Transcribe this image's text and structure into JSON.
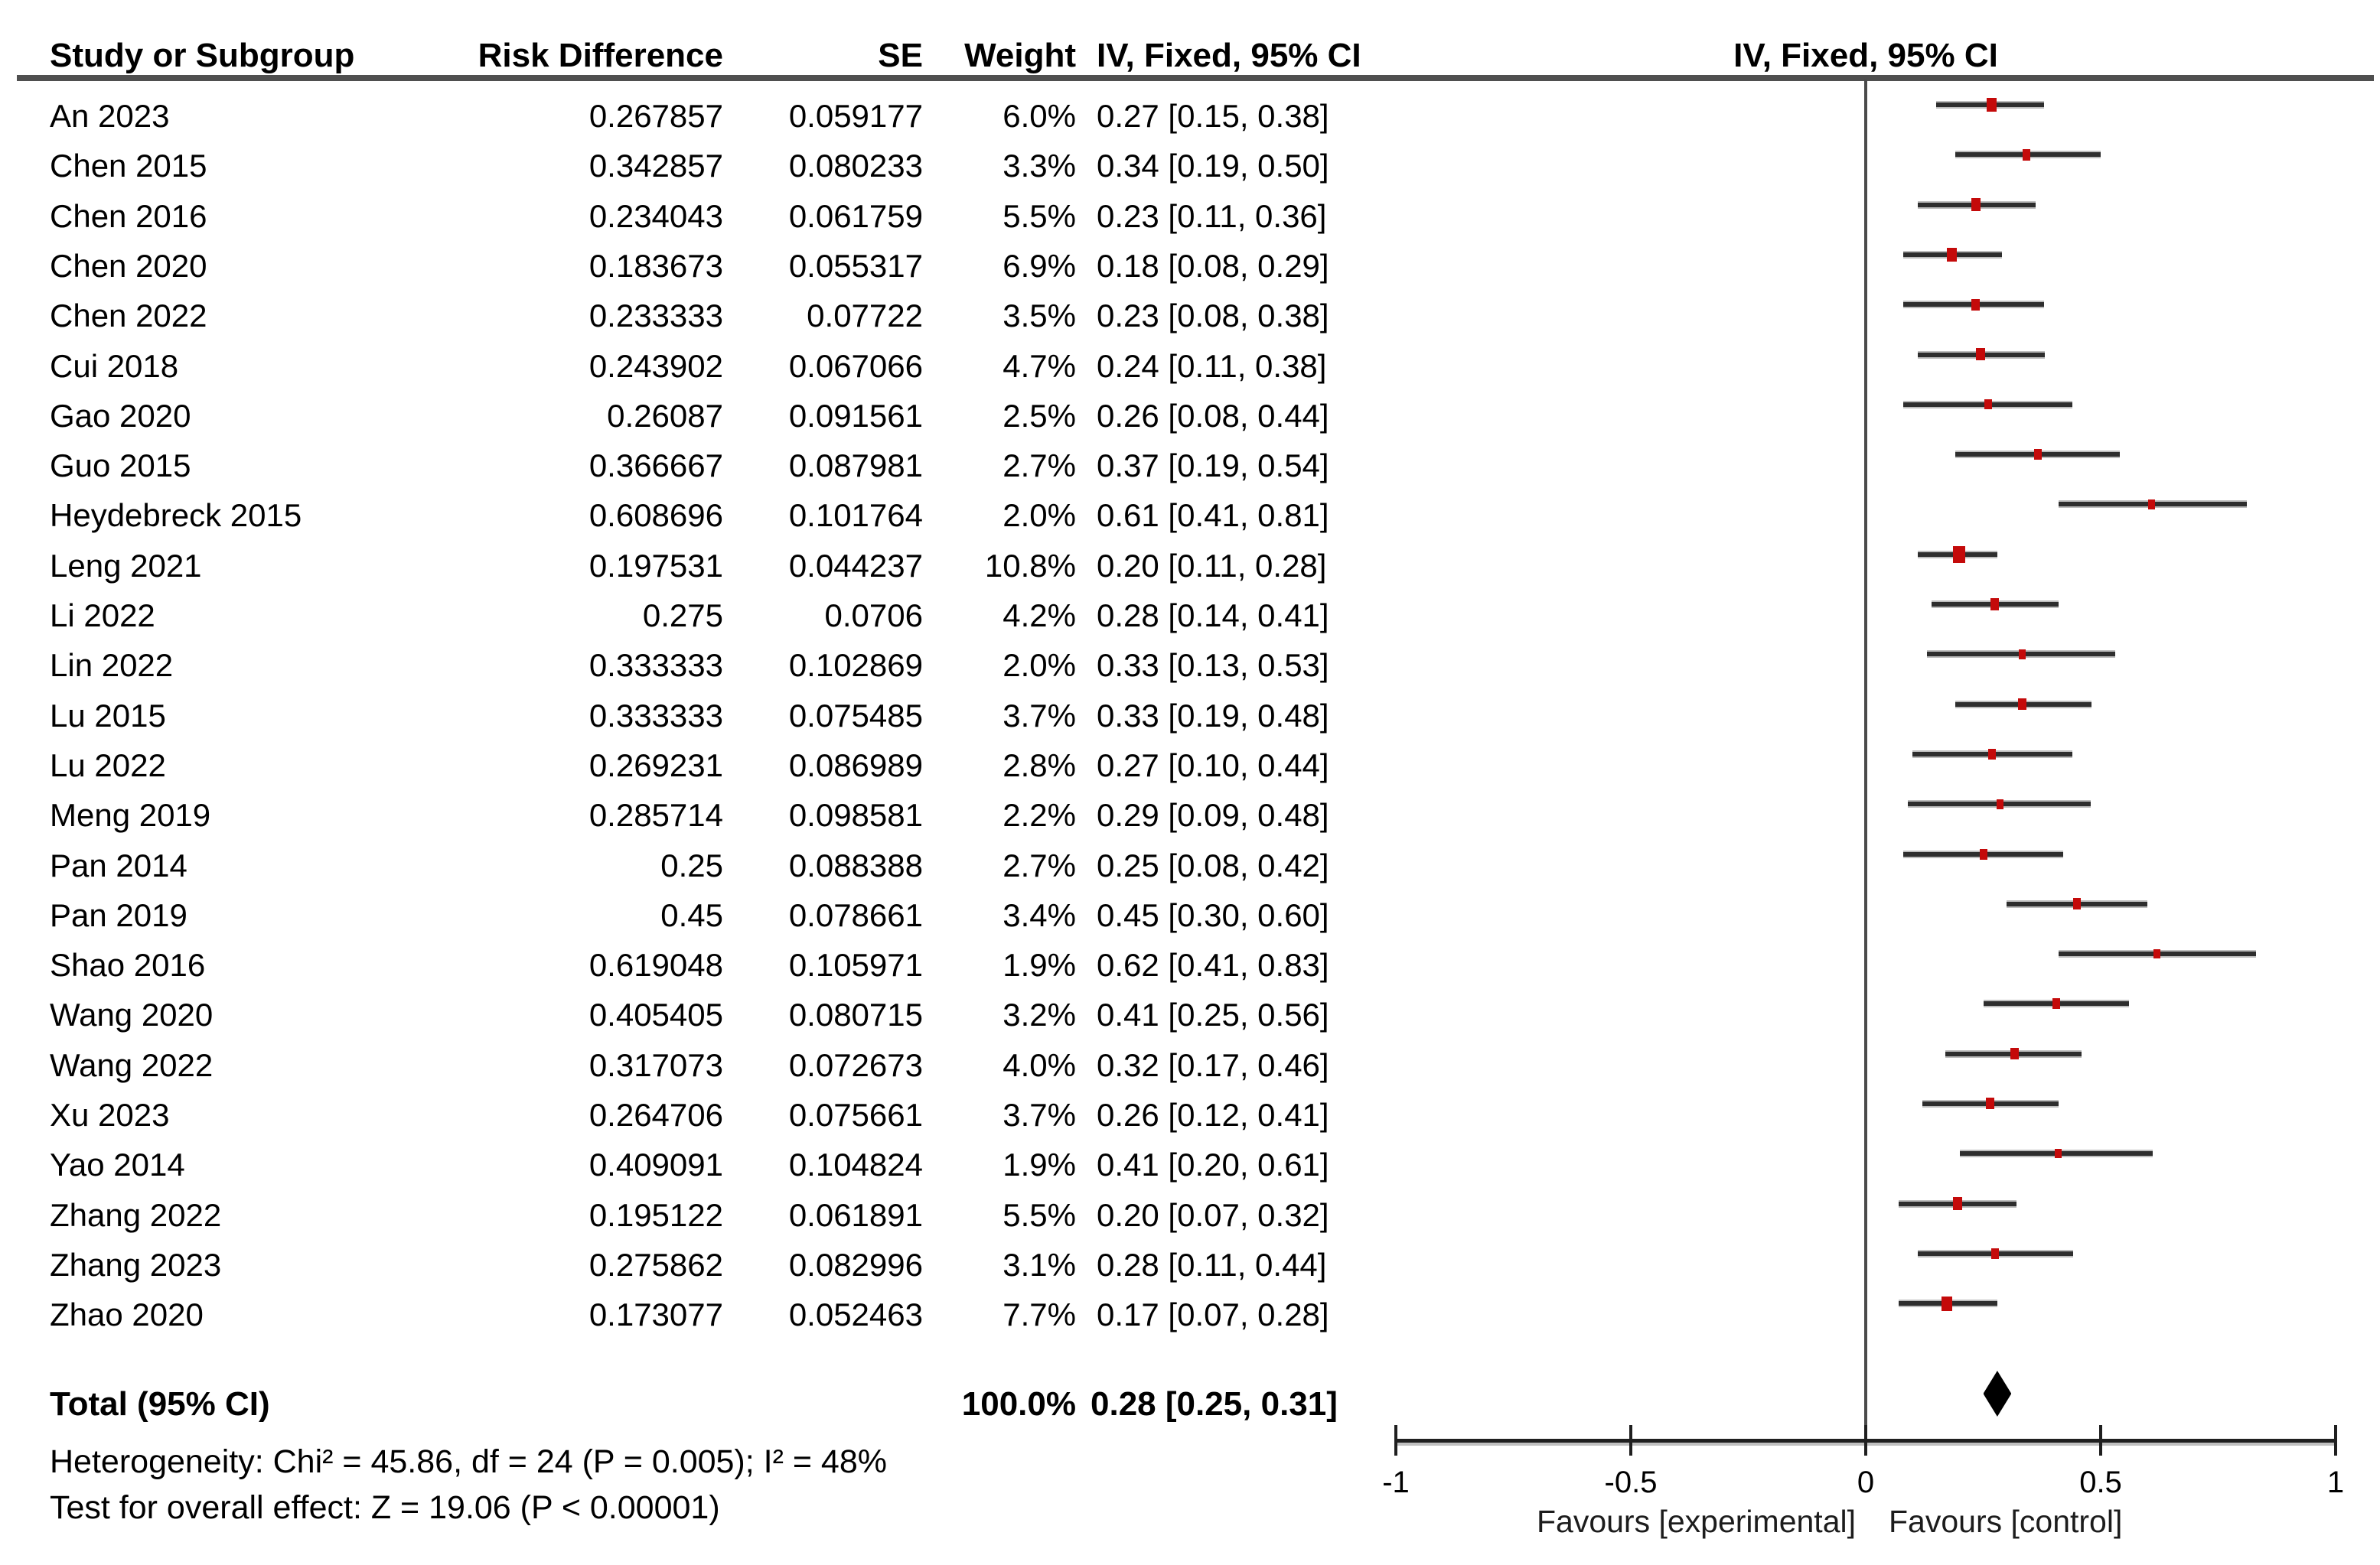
{
  "table": {
    "headers": {
      "study": "Study or Subgroup",
      "risk_difference": "Risk Difference",
      "se": "SE",
      "weight": "Weight",
      "ci_text": "IV, Fixed, 95% CI",
      "ci_plot": "IV, Fixed, 95% CI"
    }
  },
  "chart_data": {
    "type": "forest",
    "effect_measure": "Risk Difference",
    "model": "IV, Fixed",
    "xlim": [
      -1,
      1
    ],
    "x_ticks": [
      -1,
      -0.5,
      0,
      0.5,
      1
    ],
    "x_tick_labels": [
      "-1",
      "-0.5",
      "0",
      "0.5",
      "1"
    ],
    "favours_left": "Favours [experimental]",
    "favours_right": "Favours [control]",
    "marker_color": "#C40A0A",
    "diamond_color": "#000000",
    "studies": [
      {
        "label": "An 2023",
        "rd": "0.267857",
        "se": "0.059177",
        "weight": "6.0%",
        "ci": "0.27 [0.15, 0.38]",
        "est": 0.267857,
        "lo": 0.15,
        "hi": 0.38,
        "w": 6.0
      },
      {
        "label": "Chen 2015",
        "rd": "0.342857",
        "se": "0.080233",
        "weight": "3.3%",
        "ci": "0.34 [0.19, 0.50]",
        "est": 0.342857,
        "lo": 0.19,
        "hi": 0.5,
        "w": 3.3
      },
      {
        "label": "Chen 2016",
        "rd": "0.234043",
        "se": "0.061759",
        "weight": "5.5%",
        "ci": "0.23 [0.11, 0.36]",
        "est": 0.234043,
        "lo": 0.11,
        "hi": 0.36,
        "w": 5.5
      },
      {
        "label": "Chen 2020",
        "rd": "0.183673",
        "se": "0.055317",
        "weight": "6.9%",
        "ci": "0.18 [0.08, 0.29]",
        "est": 0.183673,
        "lo": 0.08,
        "hi": 0.29,
        "w": 6.9
      },
      {
        "label": "Chen 2022",
        "rd": "0.233333",
        "se": "0.07722",
        "weight": "3.5%",
        "ci": "0.23 [0.08, 0.38]",
        "est": 0.233333,
        "lo": 0.08,
        "hi": 0.38,
        "w": 3.5
      },
      {
        "label": "Cui 2018",
        "rd": "0.243902",
        "se": "0.067066",
        "weight": "4.7%",
        "ci": "0.24 [0.11, 0.38]",
        "est": 0.243902,
        "lo": 0.11,
        "hi": 0.38,
        "w": 4.7
      },
      {
        "label": "Gao 2020",
        "rd": "0.26087",
        "se": "0.091561",
        "weight": "2.5%",
        "ci": "0.26 [0.08, 0.44]",
        "est": 0.26087,
        "lo": 0.08,
        "hi": 0.44,
        "w": 2.5
      },
      {
        "label": "Guo 2015",
        "rd": "0.366667",
        "se": "0.087981",
        "weight": "2.7%",
        "ci": "0.37 [0.19, 0.54]",
        "est": 0.366667,
        "lo": 0.19,
        "hi": 0.54,
        "w": 2.7
      },
      {
        "label": "Heydebreck 2015",
        "rd": "0.608696",
        "se": "0.101764",
        "weight": "2.0%",
        "ci": "0.61 [0.41, 0.81]",
        "est": 0.608696,
        "lo": 0.41,
        "hi": 0.81,
        "w": 2.0
      },
      {
        "label": "Leng 2021",
        "rd": "0.197531",
        "se": "0.044237",
        "weight": "10.8%",
        "ci": "0.20 [0.11, 0.28]",
        "est": 0.197531,
        "lo": 0.11,
        "hi": 0.28,
        "w": 10.8
      },
      {
        "label": "Li 2022",
        "rd": "0.275",
        "se": "0.0706",
        "weight": "4.2%",
        "ci": "0.28 [0.14, 0.41]",
        "est": 0.275,
        "lo": 0.14,
        "hi": 0.41,
        "w": 4.2
      },
      {
        "label": "Lin 2022",
        "rd": "0.333333",
        "se": "0.102869",
        "weight": "2.0%",
        "ci": "0.33 [0.13, 0.53]",
        "est": 0.333333,
        "lo": 0.13,
        "hi": 0.53,
        "w": 2.0
      },
      {
        "label": "Lu 2015",
        "rd": "0.333333",
        "se": "0.075485",
        "weight": "3.7%",
        "ci": "0.33 [0.19, 0.48]",
        "est": 0.333333,
        "lo": 0.19,
        "hi": 0.48,
        "w": 3.7
      },
      {
        "label": "Lu 2022",
        "rd": "0.269231",
        "se": "0.086989",
        "weight": "2.8%",
        "ci": "0.27 [0.10, 0.44]",
        "est": 0.269231,
        "lo": 0.1,
        "hi": 0.44,
        "w": 2.8
      },
      {
        "label": "Meng 2019",
        "rd": "0.285714",
        "se": "0.098581",
        "weight": "2.2%",
        "ci": "0.29 [0.09, 0.48]",
        "est": 0.285714,
        "lo": 0.09,
        "hi": 0.48,
        "w": 2.2
      },
      {
        "label": "Pan 2014",
        "rd": "0.25",
        "se": "0.088388",
        "weight": "2.7%",
        "ci": "0.25 [0.08, 0.42]",
        "est": 0.25,
        "lo": 0.08,
        "hi": 0.42,
        "w": 2.7
      },
      {
        "label": "Pan 2019",
        "rd": "0.45",
        "se": "0.078661",
        "weight": "3.4%",
        "ci": "0.45 [0.30, 0.60]",
        "est": 0.45,
        "lo": 0.3,
        "hi": 0.6,
        "w": 3.4
      },
      {
        "label": "Shao 2016",
        "rd": "0.619048",
        "se": "0.105971",
        "weight": "1.9%",
        "ci": "0.62 [0.41, 0.83]",
        "est": 0.619048,
        "lo": 0.41,
        "hi": 0.83,
        "w": 1.9
      },
      {
        "label": "Wang 2020",
        "rd": "0.405405",
        "se": "0.080715",
        "weight": "3.2%",
        "ci": "0.41 [0.25, 0.56]",
        "est": 0.405405,
        "lo": 0.25,
        "hi": 0.56,
        "w": 3.2
      },
      {
        "label": "Wang 2022",
        "rd": "0.317073",
        "se": "0.072673",
        "weight": "4.0%",
        "ci": "0.32 [0.17, 0.46]",
        "est": 0.317073,
        "lo": 0.17,
        "hi": 0.46,
        "w": 4.0
      },
      {
        "label": "Xu 2023",
        "rd": "0.264706",
        "se": "0.075661",
        "weight": "3.7%",
        "ci": "0.26 [0.12, 0.41]",
        "est": 0.264706,
        "lo": 0.12,
        "hi": 0.41,
        "w": 3.7
      },
      {
        "label": "Yao 2014",
        "rd": "0.409091",
        "se": "0.104824",
        "weight": "1.9%",
        "ci": "0.41 [0.20, 0.61]",
        "est": 0.409091,
        "lo": 0.2,
        "hi": 0.61,
        "w": 1.9
      },
      {
        "label": "Zhang 2022",
        "rd": "0.195122",
        "se": "0.061891",
        "weight": "5.5%",
        "ci": "0.20 [0.07, 0.32]",
        "est": 0.195122,
        "lo": 0.07,
        "hi": 0.32,
        "w": 5.5
      },
      {
        "label": "Zhang 2023",
        "rd": "0.275862",
        "se": "0.082996",
        "weight": "3.1%",
        "ci": "0.28 [0.11, 0.44]",
        "est": 0.275862,
        "lo": 0.11,
        "hi": 0.44,
        "w": 3.1
      },
      {
        "label": "Zhao 2020",
        "rd": "0.173077",
        "se": "0.052463",
        "weight": "7.7%",
        "ci": "0.17 [0.07, 0.28]",
        "est": 0.173077,
        "lo": 0.07,
        "hi": 0.28,
        "w": 7.7
      }
    ],
    "total": {
      "label": "Total (95% CI)",
      "weight": "100.0%",
      "ci": "0.28 [0.25, 0.31]",
      "est": 0.28,
      "lo": 0.25,
      "hi": 0.31
    },
    "heterogeneity": "Heterogeneity: Chi² = 45.86, df = 24 (P = 0.005); I² = 48%",
    "overall_effect": "Test for overall effect: Z = 19.06 (P < 0.00001)"
  }
}
